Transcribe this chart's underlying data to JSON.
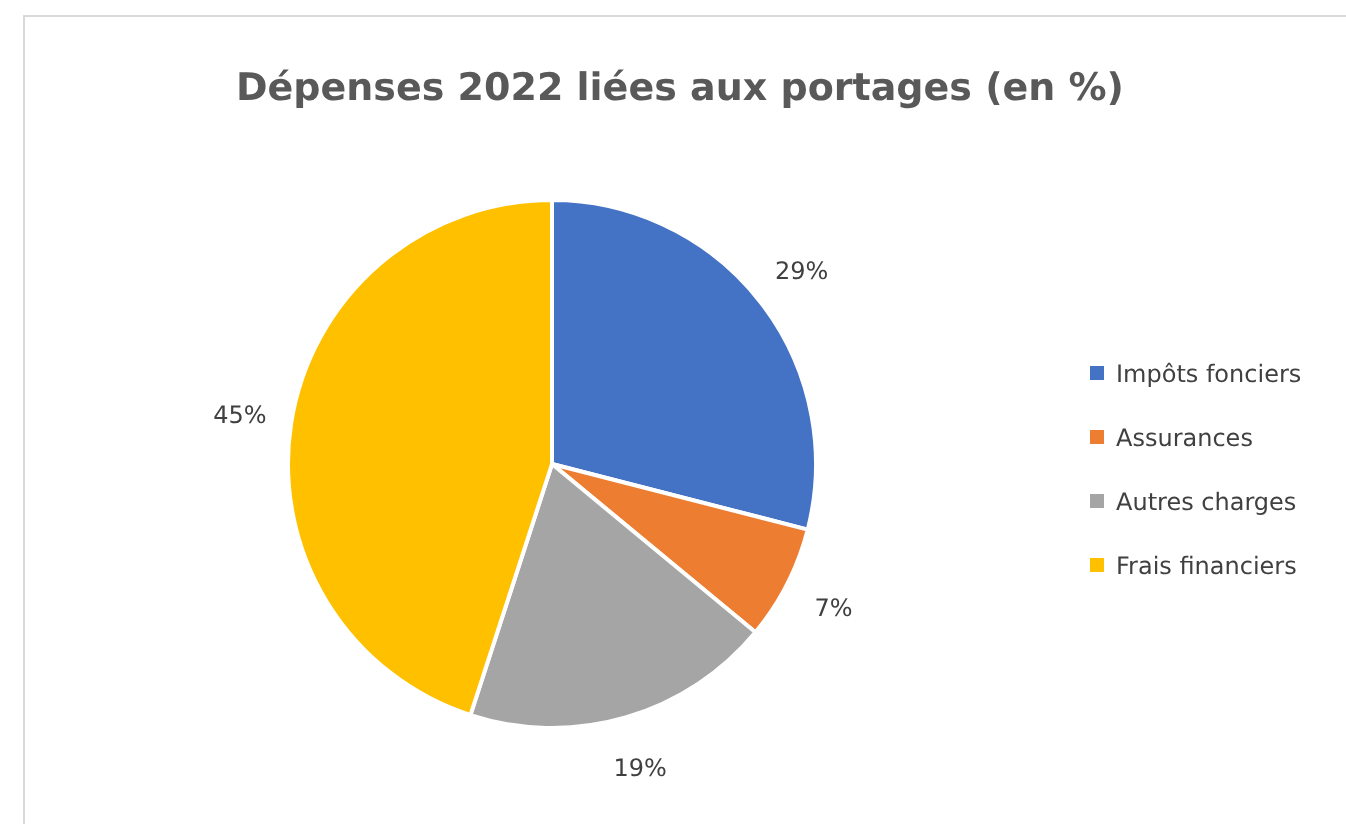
{
  "chart_data": {
    "type": "pie",
    "title": "Dépenses 2022 liées aux portages (en %)",
    "categories": [
      "Impôts fonciers",
      "Assurances",
      "Autres charges",
      "Frais financiers"
    ],
    "values": [
      29,
      7,
      19,
      45
    ],
    "colors": [
      "#4472c4",
      "#ed7d31",
      "#a5a5a5",
      "#ffc000"
    ],
    "value_labels": [
      "29%",
      "7%",
      "19%",
      "45%"
    ],
    "legend": "right"
  }
}
